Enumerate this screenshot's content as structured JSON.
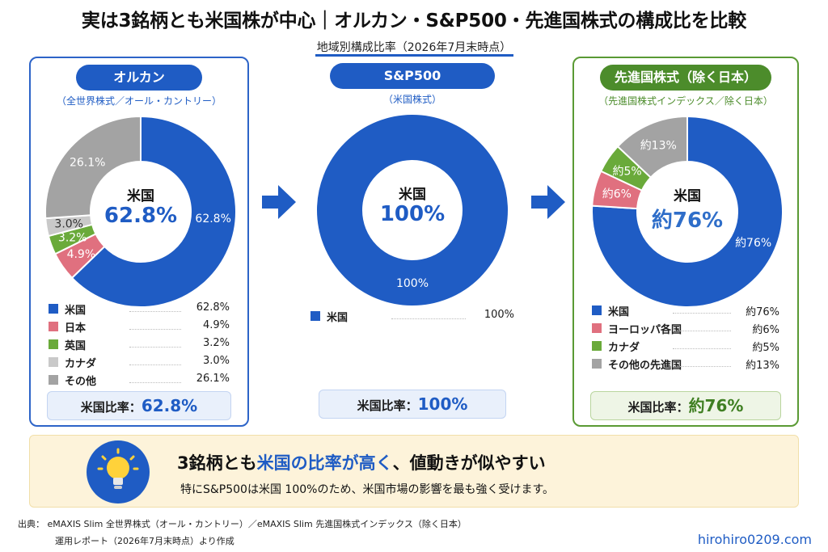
{
  "title": "実は3銘柄とも米国株が中心｜オルカン・S&P500・先進国株式の構成比を比較",
  "subtitle": "地域別構成比率（2026年7月末時点）",
  "colors": {
    "us": "#1f5cc4",
    "japan": "#e0707f",
    "uk": "#6aaa3a",
    "canada": "#c9c9c9",
    "other": "#a3a3a3",
    "europe": "#e0707f"
  },
  "chart_data": [
    {
      "type": "pie",
      "title": "オルカン",
      "subtitle": "（全世界株式／オール・カントリー）",
      "center_label": "米国",
      "center_value": "62.8%",
      "slices": [
        {
          "name": "米国",
          "value": 62.8,
          "label": "62.8%"
        },
        {
          "name": "日本",
          "value": 4.9,
          "label": "4.9%"
        },
        {
          "name": "英国",
          "value": 3.2,
          "label": "3.2%"
        },
        {
          "name": "カナダ",
          "value": 3.0,
          "label": "3.0%"
        },
        {
          "name": "その他",
          "value": 26.1,
          "label": "26.1%"
        }
      ],
      "ratio_label": "米国比率：",
      "ratio_value": "62.8%"
    },
    {
      "type": "pie",
      "title": "S&P500",
      "subtitle": "（米国株式）",
      "center_label": "米国",
      "center_value": "100%",
      "slices": [
        {
          "name": "米国",
          "value": 100,
          "label": "100%"
        }
      ],
      "ratio_label": "米国比率：",
      "ratio_value": "100%"
    },
    {
      "type": "pie",
      "title": "先進国株式（除く日本）",
      "subtitle": "（先進国株式インデックス／除く日本）",
      "center_label": "米国",
      "center_value": "約76%",
      "slices": [
        {
          "name": "米国",
          "value": 76,
          "label": "約76%"
        },
        {
          "name": "ヨーロッパ各国",
          "value": 6,
          "label": "約6%"
        },
        {
          "name": "カナダ",
          "value": 5,
          "label": "約5%"
        },
        {
          "name": "その他の先進国",
          "value": 13,
          "label": "約13%"
        }
      ],
      "ratio_label": "米国比率：",
      "ratio_value": "約76%"
    }
  ],
  "highlight": {
    "line1_a": "3銘柄とも",
    "line1_b": "米国の比率が高く",
    "line1_c": "、値動きが似やすい",
    "line2": "特にS&P500は米国 100%のため、米国市場の影響を最も強く受けます。"
  },
  "source": {
    "line1": "出典： eMAXIS Slim 全世界株式（オール・カントリー）／eMAXIS Slim 先進国株式インデックス（除く日本）",
    "line2": "運用レポート（2026年7月末時点）より作成"
  },
  "site": "hirohiro0209.com"
}
